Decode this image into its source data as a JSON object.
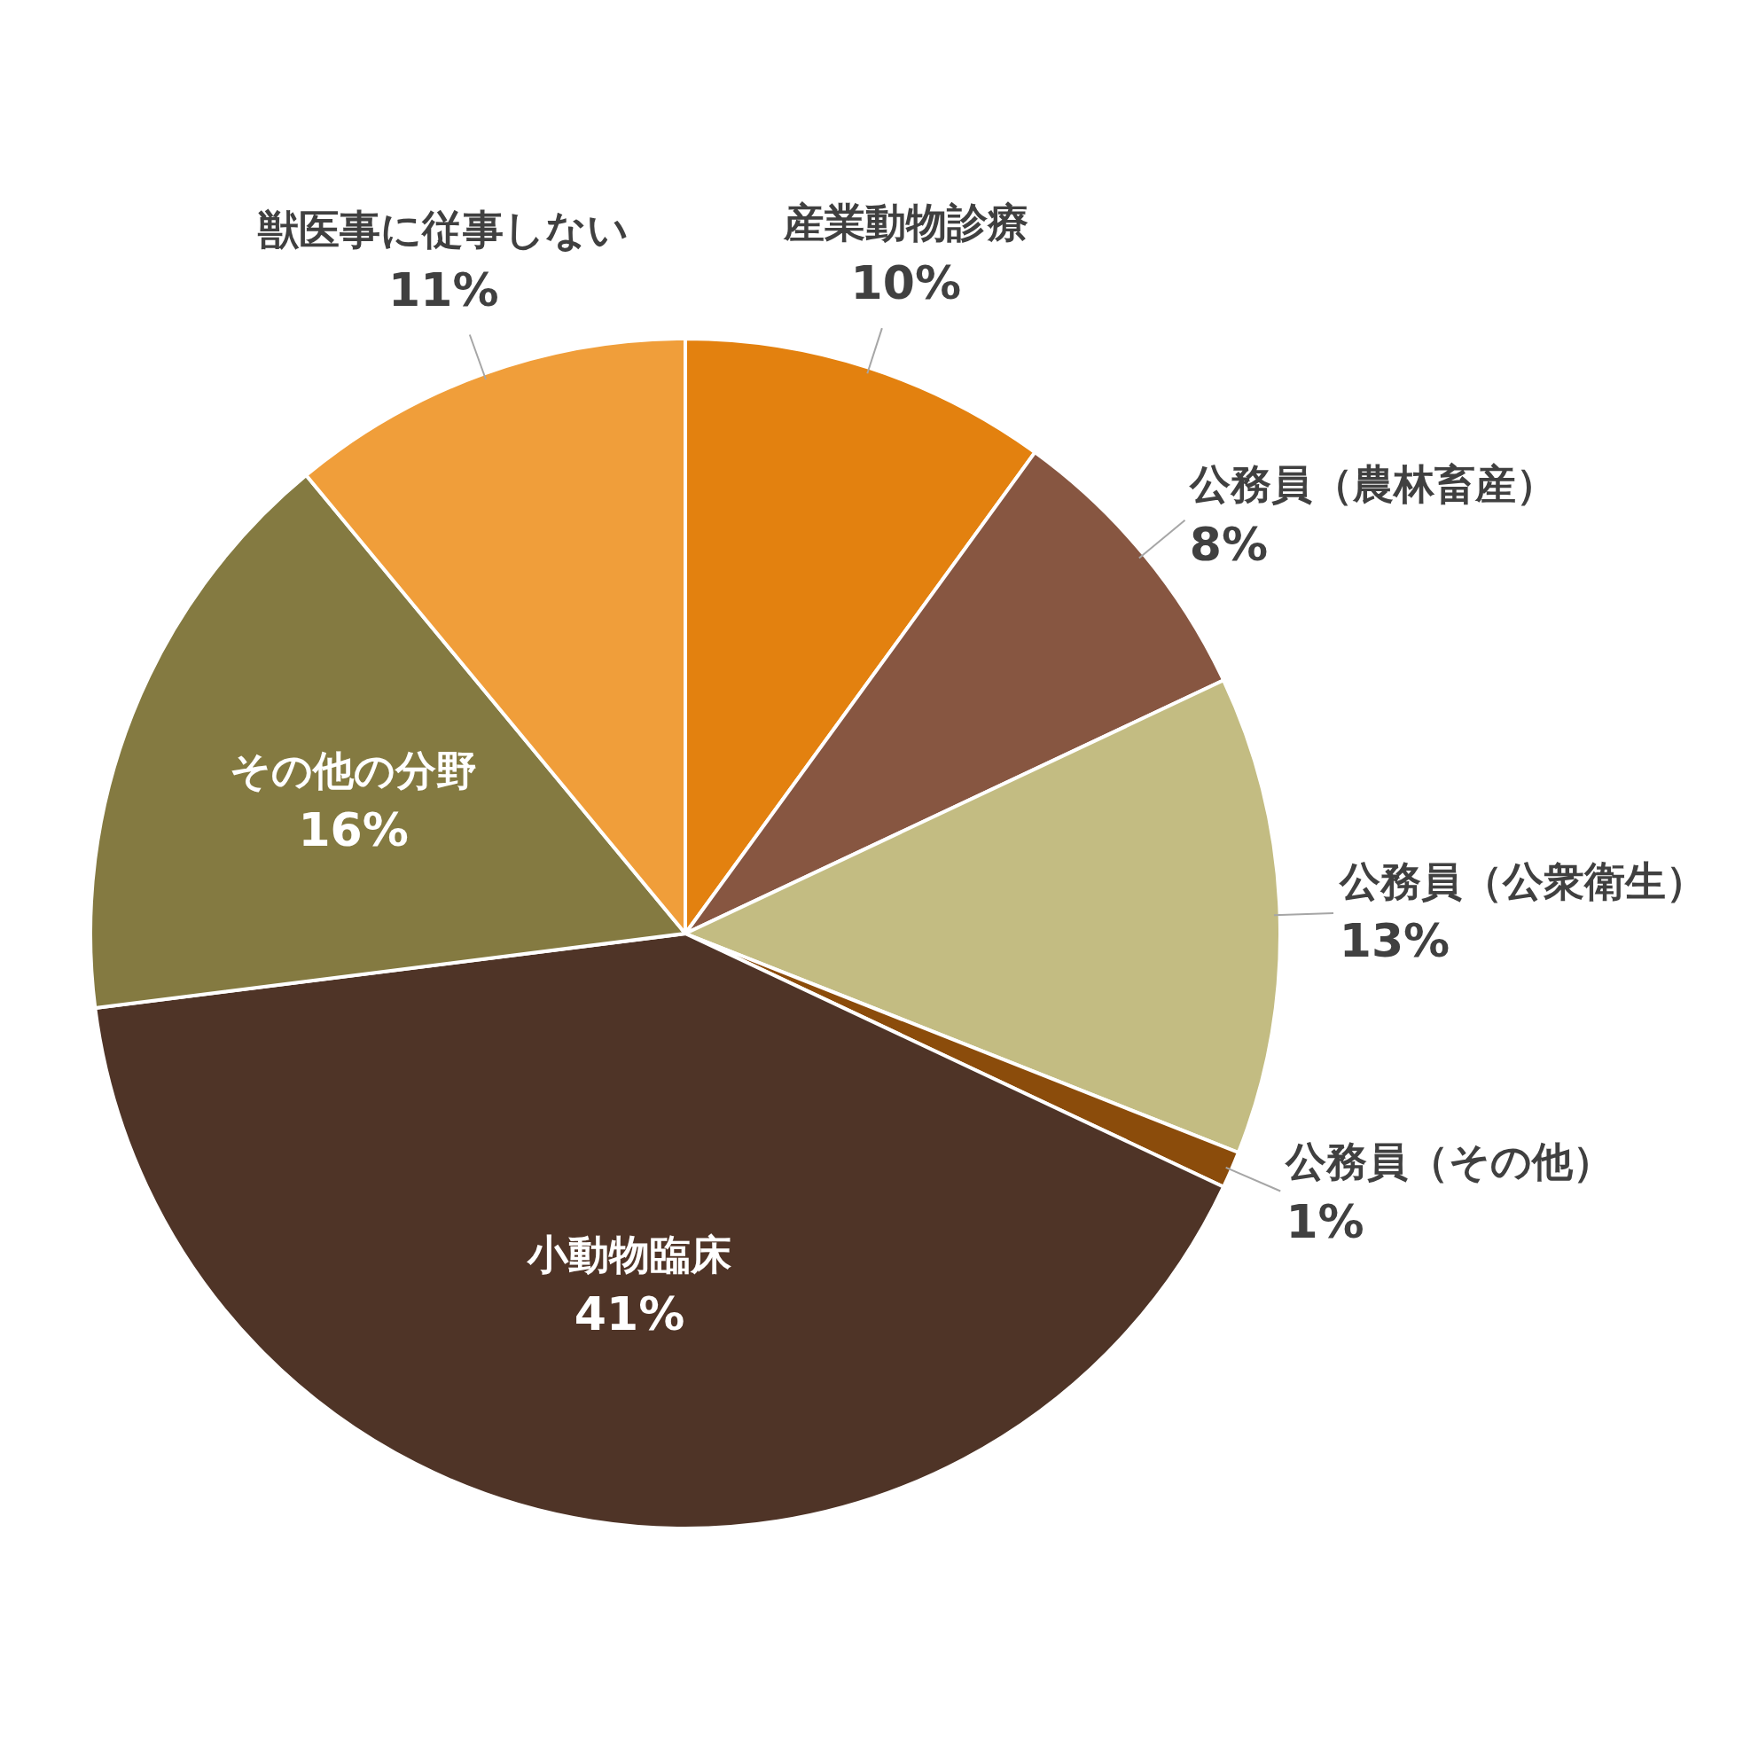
{
  "chart_data": {
    "type": "pie",
    "categories": [
      "産業動物診療",
      "公務員（農林畜産）",
      "公務員（公衆衛生）",
      "公務員（その他）",
      "小動物臨床",
      "その他の分野",
      "獣医事に従事しない"
    ],
    "values": [
      10,
      8,
      13,
      1,
      41,
      16,
      11
    ],
    "value_labels": [
      "10%",
      "8%",
      "13%",
      "1%",
      "41%",
      "16%",
      "11%"
    ],
    "colors": [
      "#e3810f",
      "#875641",
      "#c3bc82",
      "#8b4c0b",
      "#4f3427",
      "#847a41",
      "#f09e3a"
    ],
    "legend": false
  }
}
